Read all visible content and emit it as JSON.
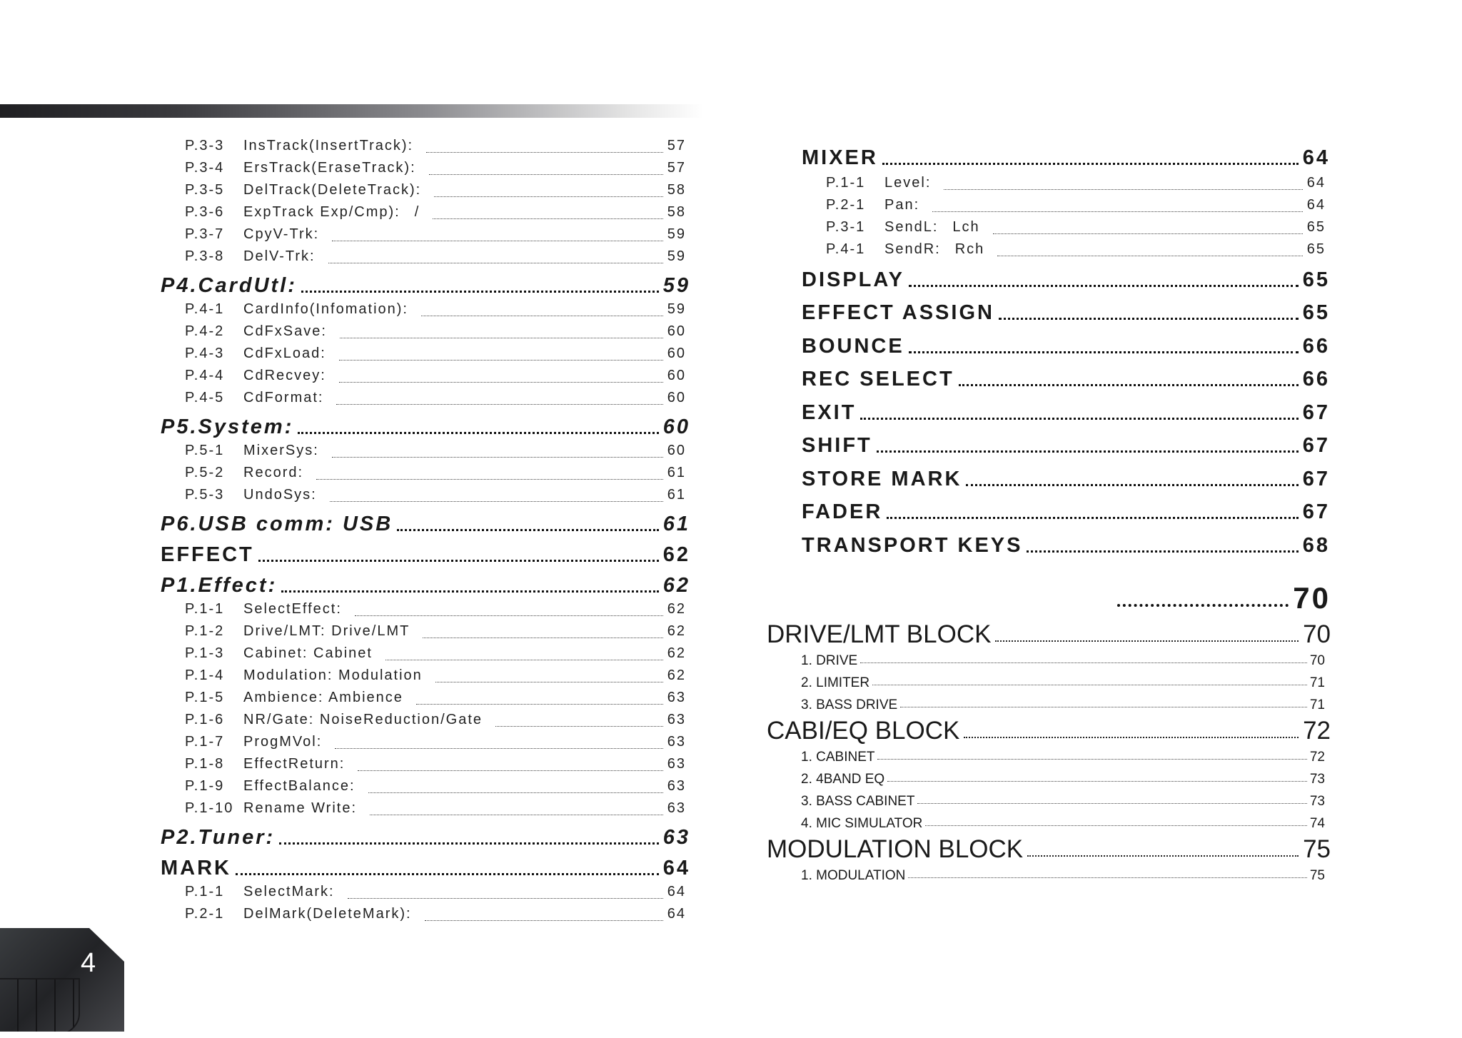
{
  "page_number": "4",
  "left_column": [
    {
      "type": "sub",
      "code": "P.3-3",
      "title": "InsTrack(InsertTrack):",
      "page": "57"
    },
    {
      "type": "sub",
      "code": "P.3-4",
      "title": "ErsTrack(EraseTrack):",
      "page": "57"
    },
    {
      "type": "sub",
      "code": "P.3-5",
      "title": "DelTrack(DeleteTrack):",
      "page": "58"
    },
    {
      "type": "sub",
      "code": "P.3-6",
      "title": "ExpTrack  Exp/Cmp):",
      "mid": "/",
      "page": "58"
    },
    {
      "type": "sub",
      "code": "P.3-7",
      "title": "CpyV-Trk:",
      "page": "59"
    },
    {
      "type": "sub",
      "code": "P.3-8",
      "title": "DelV-Trk:",
      "page": "59"
    },
    {
      "type": "head-it",
      "title": "P4.CardUtl:",
      "page": "59"
    },
    {
      "type": "sub",
      "code": "P.4-1",
      "title": "CardInfo(Infomation):",
      "page": "59"
    },
    {
      "type": "sub",
      "code": "P.4-2",
      "title": "CdFxSave:",
      "page": "60"
    },
    {
      "type": "sub",
      "code": "P.4-3",
      "title": "CdFxLoad:",
      "page": "60"
    },
    {
      "type": "sub",
      "code": "P.4-4",
      "title": "CdRecvey:",
      "page": "60"
    },
    {
      "type": "sub",
      "code": "P.4-5",
      "title": "CdFormat:",
      "page": "60"
    },
    {
      "type": "head-it",
      "title": "P5.System:",
      "page": "60"
    },
    {
      "type": "sub",
      "code": "P.5-1",
      "title": "MixerSys:",
      "page": "60"
    },
    {
      "type": "sub",
      "code": "P.5-2",
      "title": "Record:",
      "page": "61"
    },
    {
      "type": "sub",
      "code": "P.5-3",
      "title": "UndoSys:",
      "page": "61"
    },
    {
      "type": "head-it",
      "title": "P6.USB comm: USB",
      "page": "61"
    },
    {
      "type": "head",
      "title": "EFFECT",
      "page": "62"
    },
    {
      "type": "head-it",
      "title": "P1.Effect:",
      "page": "62"
    },
    {
      "type": "sub",
      "code": "P.1-1",
      "title": "SelectEffect:",
      "page": "62"
    },
    {
      "type": "sub",
      "code": "P.1-2",
      "title": "Drive/LMT: Drive/LMT",
      "page": "62"
    },
    {
      "type": "sub",
      "code": "P.1-3",
      "title": "Cabinet: Cabinet",
      "page": "62"
    },
    {
      "type": "sub",
      "code": "P.1-4",
      "title": "Modulation: Modulation",
      "page": "62"
    },
    {
      "type": "sub",
      "code": "P.1-5",
      "title": "Ambience: Ambience",
      "page": "63"
    },
    {
      "type": "sub",
      "code": "P.1-6",
      "title": "NR/Gate: NoiseReduction/Gate",
      "page": "63"
    },
    {
      "type": "sub",
      "code": "P.1-7",
      "title": "ProgMVol:",
      "page": "63"
    },
    {
      "type": "sub",
      "code": "P.1-8",
      "title": "EffectReturn:",
      "page": "63"
    },
    {
      "type": "sub",
      "code": "P.1-9",
      "title": "EffectBalance:",
      "page": "63"
    },
    {
      "type": "sub",
      "code": "P.1-10",
      "title": "Rename  Write:",
      "page": "63"
    },
    {
      "type": "head-it",
      "title": "P2.Tuner:",
      "page": "63"
    },
    {
      "type": "head",
      "title": "MARK",
      "page": "64"
    },
    {
      "type": "sub",
      "code": "P.1-1",
      "title": "SelectMark:",
      "page": "64"
    },
    {
      "type": "sub",
      "code": "P.2-1",
      "title": "DelMark(DeleteMark):",
      "page": "64"
    }
  ],
  "right_column": [
    {
      "type": "head",
      "title": "MIXER",
      "page": "64"
    },
    {
      "type": "sub",
      "code": "P.1-1",
      "title": "Level:",
      "page": "64"
    },
    {
      "type": "sub",
      "code": "P.2-1",
      "title": "Pan:",
      "page": "64"
    },
    {
      "type": "sub",
      "code": "P.3-1",
      "title": "SendL:",
      "mid": "Lch",
      "page": "65"
    },
    {
      "type": "sub",
      "code": "P.4-1",
      "title": "SendR:",
      "mid": "Rch",
      "page": "65"
    },
    {
      "type": "head",
      "title": "DISPLAY",
      "page": "65"
    },
    {
      "type": "head",
      "title": "EFFECT ASSIGN",
      "page": "65"
    },
    {
      "type": "head",
      "title": "BOUNCE",
      "page": "66"
    },
    {
      "type": "head",
      "title": "REC SELECT",
      "page": "66"
    },
    {
      "type": "head",
      "title": "EXIT",
      "page": "67"
    },
    {
      "type": "head",
      "title": "SHIFT",
      "page": "67"
    },
    {
      "type": "head",
      "title": "STORE MARK",
      "page": "67"
    },
    {
      "type": "head",
      "title": "FADER",
      "page": "67"
    },
    {
      "type": "head",
      "title": "TRANSPORT KEYS",
      "page": "68"
    }
  ],
  "lower_right": [
    {
      "type": "big",
      "title": "",
      "page": "70"
    },
    {
      "type": "block",
      "title": "DRIVE/LMT BLOCK",
      "page": "70"
    },
    {
      "type": "bsub",
      "title": "1. DRIVE",
      "page": "70"
    },
    {
      "type": "bsub",
      "title": "2. LIMITER",
      "page": "71"
    },
    {
      "type": "bsub",
      "title": "3. BASS DRIVE",
      "page": "71"
    },
    {
      "type": "block",
      "title": "CABI/EQ BLOCK",
      "page": "72"
    },
    {
      "type": "bsub",
      "title": "1. CABINET",
      "page": "72"
    },
    {
      "type": "bsub",
      "title": "2. 4BAND EQ",
      "page": "73"
    },
    {
      "type": "bsub",
      "title": "3. BASS CABINET",
      "page": "73"
    },
    {
      "type": "bsub",
      "title": "4. MIC SIMULATOR",
      "page": "74"
    },
    {
      "type": "block",
      "title": "MODULATION BLOCK",
      "page": "75"
    },
    {
      "type": "bsub",
      "title": "1. MODULATION",
      "page": "75"
    }
  ]
}
